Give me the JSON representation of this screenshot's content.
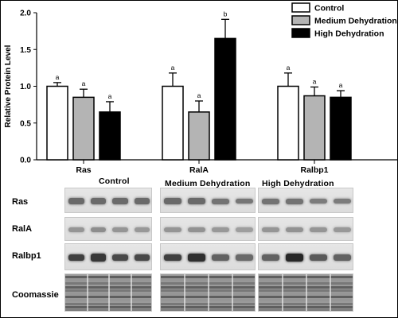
{
  "chart_data": {
    "type": "bar",
    "ylabel": "Relative Protein Level",
    "ylim": [
      0,
      2.0
    ],
    "yticks": [
      "0.0",
      "0.5",
      "1.0",
      "1.5",
      "2.0"
    ],
    "categories": [
      "Ras",
      "RalA",
      "Ralbp1"
    ],
    "series": [
      {
        "name": "Control",
        "color": "#ffffff",
        "values": [
          1.0,
          1.0,
          1.0
        ],
        "errors": [
          0.05,
          0.18,
          0.18
        ],
        "letters": [
          "a",
          "a",
          "a"
        ]
      },
      {
        "name": "Medium Dehydration",
        "color": "#b4b4b4",
        "values": [
          0.85,
          0.65,
          0.87
        ],
        "errors": [
          0.11,
          0.15,
          0.12
        ],
        "letters": [
          "a",
          "a",
          "a"
        ]
      },
      {
        "name": "High Dehydration",
        "color": "#000000",
        "values": [
          0.65,
          1.65,
          0.85
        ],
        "errors": [
          0.14,
          0.26,
          0.09
        ],
        "letters": [
          "a",
          "b",
          "a"
        ]
      }
    ],
    "legend_position": "top-right"
  },
  "blot": {
    "group_labels": [
      "Control",
      "Medium Dehydration",
      "High Dehydration"
    ],
    "row_labels": [
      "Ras",
      "RalA",
      "Ralbp1",
      "Coomassie"
    ],
    "band_intensity": [
      [
        [
          0.55,
          0.55,
          0.55,
          0.55
        ],
        [
          0.55,
          0.55,
          0.5,
          0.48
        ],
        [
          0.5,
          0.5,
          0.45,
          0.45
        ]
      ],
      [
        [
          0.3,
          0.35,
          0.3,
          0.28
        ],
        [
          0.3,
          0.32,
          0.28,
          0.25
        ],
        [
          0.3,
          0.32,
          0.3,
          0.28
        ]
      ],
      [
        [
          0.8,
          0.85,
          0.75,
          0.75
        ],
        [
          0.8,
          0.9,
          0.6,
          0.55
        ],
        [
          0.6,
          0.95,
          0.65,
          0.6
        ]
      ]
    ]
  }
}
